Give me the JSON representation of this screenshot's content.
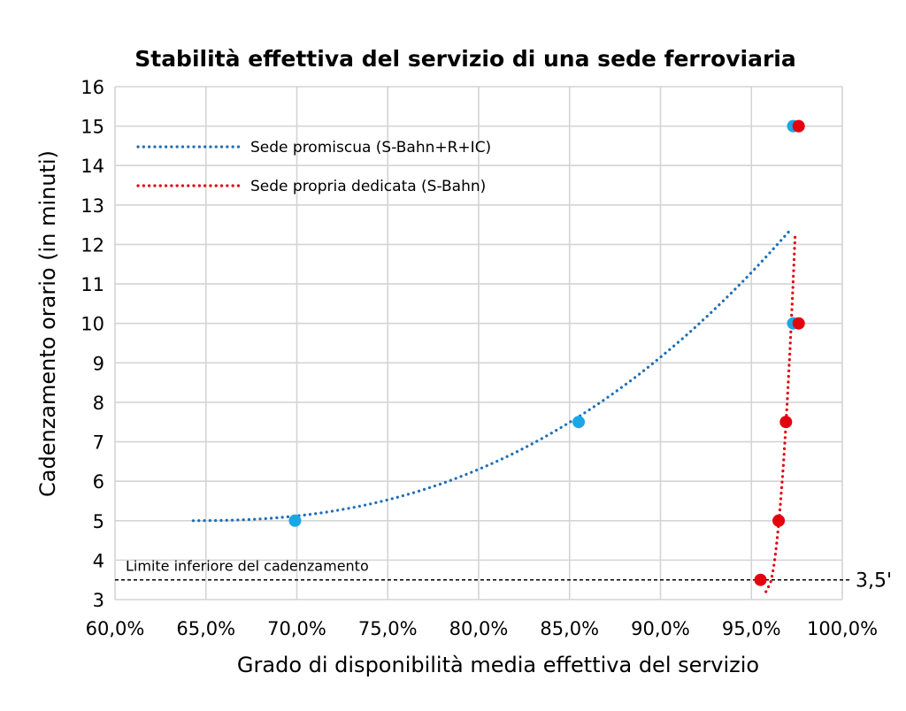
{
  "chart_data": {
    "type": "scatter",
    "title": "Stabilità effettiva del servizio di una sede ferroviaria",
    "xlabel": "Grado di disponibilità media effettiva del servizio",
    "ylabel": "Cadenzamento orario (in minuti)",
    "xlim": [
      0.6,
      1.0
    ],
    "ylim": [
      3,
      16
    ],
    "x_ticks": [
      0.6,
      0.65,
      0.7,
      0.75,
      0.8,
      0.85,
      0.9,
      0.95,
      1.0
    ],
    "x_tick_labels": [
      "60,0%",
      "65,0%",
      "70,0%",
      "75,0%",
      "80,0%",
      "85,0%",
      "90,0%",
      "95,0%",
      "100,0%"
    ],
    "y_ticks": [
      3,
      4,
      5,
      6,
      7,
      8,
      9,
      10,
      11,
      12,
      13,
      14,
      15,
      16
    ],
    "y_tick_labels": [
      "3",
      "4",
      "5",
      "6",
      "7",
      "8",
      "9",
      "10",
      "11",
      "12",
      "13",
      "14",
      "15",
      "16"
    ],
    "grid": true,
    "legend_position": "top-left",
    "series": [
      {
        "name": "Sede promiscua (S-Bahn+R+IC)",
        "color": "#1aa7e6",
        "trend_color": "#1f6eb5",
        "points": [
          {
            "x": 0.699,
            "y": 5
          },
          {
            "x": 0.855,
            "y": 7.5
          },
          {
            "x": 0.973,
            "y": 10
          },
          {
            "x": 0.973,
            "y": 15
          }
        ]
      },
      {
        "name": "Sede propria dedicata (S-Bahn)",
        "color": "#e3000f",
        "trend_color": "#e3000f",
        "points": [
          {
            "x": 0.955,
            "y": 3.5
          },
          {
            "x": 0.965,
            "y": 5
          },
          {
            "x": 0.969,
            "y": 7.5
          },
          {
            "x": 0.976,
            "y": 10
          },
          {
            "x": 0.976,
            "y": 15
          }
        ]
      }
    ],
    "reference_line": {
      "y": 3.5,
      "label": "3,5'",
      "note": "Limite inferiore del cadenzamento"
    }
  }
}
